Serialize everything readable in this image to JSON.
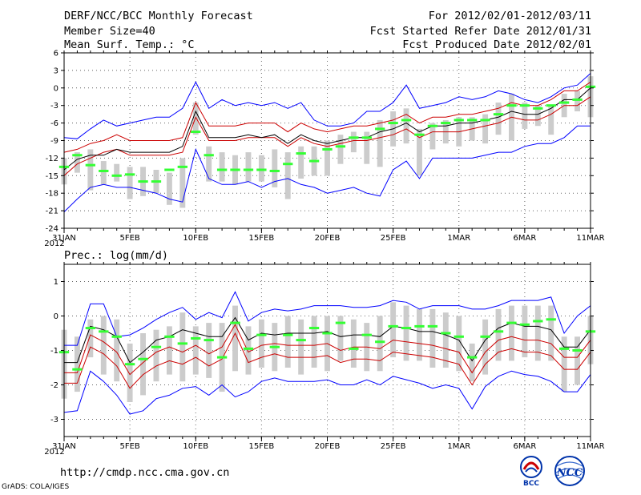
{
  "header": {
    "title": "DERF/NCC/BCC Monthly Forecast",
    "member_size": "Member Size=40",
    "variable": "Mean Surf. Temp.: °C",
    "period": "For 2012/02/01-2012/03/11",
    "started": "Fcst Started Refer Date 2012/01/31",
    "produced": "Fcst Produced Date 2012/02/01"
  },
  "footer": {
    "url": "http://cmdp.ncc.cma.gov.cn",
    "credit": "GrADS: COLA/IGES"
  },
  "logos": {
    "bcc": "BCC",
    "ncc": "NCC"
  },
  "colors": {
    "envelope": "#0000ff",
    "spread": "#cc0000",
    "mean": "#000000",
    "box": "#cccccc",
    "obs": "#33ff33"
  },
  "chart_data": [
    {
      "type": "line",
      "title": "Mean Surf. Temp.: °C",
      "x_range": [
        0,
        40
      ],
      "x_ticks": [
        {
          "x": 0,
          "label": "31JAN"
        },
        {
          "x": 5,
          "label": "5FEB"
        },
        {
          "x": 10,
          "label": "10FEB"
        },
        {
          "x": 15,
          "label": "15FEB"
        },
        {
          "x": 20,
          "label": "20FEB"
        },
        {
          "x": 25,
          "label": "25FEB"
        },
        {
          "x": 30,
          "label": "1MAR"
        },
        {
          "x": 35,
          "label": "6MAR"
        },
        {
          "x": 40,
          "label": "11MAR"
        }
      ],
      "year_label": "2012",
      "ylim": [
        -24,
        6
      ],
      "y_ticks": [
        6,
        3,
        0,
        -3,
        -6,
        -9,
        -12,
        -15,
        -18,
        -21,
        -24
      ],
      "grid": "dotted",
      "series": [
        {
          "name": "max",
          "values": [
            -21.2,
            -19,
            -17,
            -16.5,
            -17,
            -17,
            -17.5,
            -18,
            -19,
            -19.5,
            -10.5,
            -15.5,
            -16.5,
            -16.5,
            -16,
            -17,
            -16,
            -15.5,
            -16.5,
            -17,
            -18,
            -17.5,
            -17,
            -18,
            -18.5,
            -14,
            -12.5,
            -15.5,
            -12,
            -12,
            -12,
            -12,
            -11.5,
            -11,
            -11,
            -10,
            -9.5,
            -9.5,
            -8.5,
            -6.5,
            -6.5
          ]
        },
        {
          "name": "min",
          "values": [
            -8.5,
            -8.7,
            -7,
            -5.5,
            -6.5,
            -6,
            -5.5,
            -5,
            -5,
            -3.5,
            1,
            -3.5,
            -2,
            -3,
            -2.5,
            -3,
            -2.5,
            -3.5,
            -2.5,
            -5.5,
            -6.5,
            -6.5,
            -6,
            -4,
            -4,
            -2.5,
            0.5,
            -3.5,
            -3,
            -2.5,
            -1.5,
            -2,
            -1.5,
            -0.5,
            -1,
            -2,
            -2.5,
            -1.5,
            0,
            0.5,
            2.5
          ]
        },
        {
          "name": "upper",
          "values": [
            -15,
            -13,
            -12,
            -11,
            -10.5,
            -11.5,
            -11.5,
            -11.5,
            -11.5,
            -11,
            -5,
            -9,
            -9,
            -9,
            -8.5,
            -8.5,
            -8.5,
            -10,
            -8.5,
            -9.5,
            -10,
            -9.5,
            -9,
            -9,
            -8.5,
            -8,
            -7,
            -8.5,
            -7.5,
            -7.5,
            -7.5,
            -7,
            -6.5,
            -6,
            -5,
            -5.5,
            -5.5,
            -4.5,
            -3,
            -3,
            -1.5
          ]
        },
        {
          "name": "lower",
          "values": [
            -11,
            -10.5,
            -9.5,
            -9,
            -8,
            -9,
            -9,
            -9,
            -9,
            -8.5,
            -2.5,
            -6.5,
            -6.5,
            -6.5,
            -6,
            -6,
            -6,
            -7.5,
            -6,
            -7,
            -7.5,
            -7,
            -6.5,
            -6.5,
            -6,
            -5.5,
            -4.5,
            -6,
            -5,
            -5,
            -4.5,
            -4.5,
            -4,
            -3.5,
            -2.5,
            -3,
            -3,
            -2,
            -0.5,
            -0.5,
            1
          ]
        },
        {
          "name": "mean",
          "values": [
            -14,
            -12.2,
            -11.5,
            -11.5,
            -10.5,
            -11,
            -11,
            -11,
            -11,
            -10,
            -4,
            -8.5,
            -8.5,
            -8.5,
            -8,
            -8.5,
            -8,
            -9.5,
            -8,
            -9,
            -9.5,
            -9,
            -8.5,
            -8.5,
            -7.5,
            -7,
            -6,
            -7.5,
            -6.5,
            -6.5,
            -6,
            -6,
            -5.5,
            -5,
            -4,
            -4.5,
            -4.5,
            -3.5,
            -2,
            -2,
            0
          ]
        },
        {
          "name": "box_low",
          "values": [
            -16.5,
            -14.5,
            -17.5,
            -16.5,
            -16,
            -19,
            -18.5,
            -18,
            -20,
            -20.5,
            -8,
            -16,
            -16,
            -16.5,
            -16,
            -16,
            -17,
            -19,
            -15.5,
            -15,
            -15,
            -13,
            -11,
            -13,
            -13.5,
            -10,
            -9.5,
            -15,
            -10.5,
            -9.5,
            -10,
            -9,
            -9.5,
            -8,
            -9,
            -7,
            -6.5,
            -8,
            -5,
            -4,
            -5
          ]
        },
        {
          "name": "box_high",
          "values": [
            -12,
            -11,
            -10.5,
            -12.5,
            -13,
            -13.5,
            -13.5,
            -14,
            -14.5,
            -12,
            -2.5,
            -10,
            -11,
            -11.5,
            -11,
            -11.5,
            -10.5,
            -11,
            -10,
            -10,
            -9,
            -8,
            -7.5,
            -7.5,
            -5.5,
            -4,
            -3.5,
            -7,
            -6,
            -5.5,
            -5,
            -5,
            -4.5,
            -2.5,
            -1,
            -2.5,
            -3,
            -3,
            -1,
            -0.5,
            2
          ]
        },
        {
          "name": "observed",
          "values": [
            -13.5,
            -11.5,
            -13.2,
            -14.2,
            -15,
            -14.8,
            -16,
            -16,
            -14,
            -13.5,
            -7.5,
            -11.5,
            -14,
            -14,
            -14,
            -14,
            -14.2,
            -13,
            -11.2,
            -12.5,
            -10.5,
            -10,
            -8.5,
            -8.5,
            -7,
            -6,
            -5.5,
            -8,
            -6.5,
            -6,
            -5.5,
            -5.5,
            -5.5,
            -4.5,
            -3,
            -3,
            -3.5,
            -3,
            -2.5,
            -2,
            0.2
          ]
        }
      ]
    },
    {
      "type": "line",
      "title": "Prec.: log(mm/d)",
      "x_range": [
        0,
        40
      ],
      "x_ticks": [
        {
          "x": 0,
          "label": "31JAN"
        },
        {
          "x": 5,
          "label": "5FEB"
        },
        {
          "x": 10,
          "label": "10FEB"
        },
        {
          "x": 15,
          "label": "15FEB"
        },
        {
          "x": 20,
          "label": "20FEB"
        },
        {
          "x": 25,
          "label": "25FEB"
        },
        {
          "x": 30,
          "label": "1MAR"
        },
        {
          "x": 35,
          "label": "6MAR"
        },
        {
          "x": 40,
          "label": "11MAR"
        }
      ],
      "year_label": "2012",
      "ylim": [
        -3.5,
        1.5
      ],
      "y_ticks": [
        1,
        0,
        -1,
        -2,
        -3
      ],
      "grid": "dotted",
      "series": [
        {
          "name": "max",
          "values": [
            -2.8,
            -2.75,
            -1.6,
            -1.9,
            -2.3,
            -2.85,
            -2.75,
            -2.4,
            -2.3,
            -2.1,
            -2.05,
            -2.3,
            -2,
            -2.35,
            -2.2,
            -1.9,
            -1.8,
            -1.9,
            -1.9,
            -1.9,
            -1.85,
            -2,
            -2,
            -1.85,
            -2,
            -1.75,
            -1.85,
            -1.95,
            -2.1,
            -2,
            -2.1,
            -2.7,
            -2.05,
            -1.75,
            -1.6,
            -1.7,
            -1.75,
            -1.9,
            -2.2,
            -2.2,
            -1.7
          ]
        },
        {
          "name": "min",
          "values": [
            -0.85,
            -0.85,
            0.35,
            0.35,
            -0.6,
            -0.55,
            -0.35,
            -0.1,
            0.1,
            0.25,
            -0.1,
            0.1,
            -0.05,
            0.7,
            -0.15,
            0.1,
            0.2,
            0.15,
            0.2,
            0.3,
            0.3,
            0.3,
            0.25,
            0.25,
            0.3,
            0.45,
            0.4,
            0.2,
            0.3,
            0.3,
            0.3,
            0.2,
            0.2,
            0.3,
            0.45,
            0.45,
            0.45,
            0.55,
            -0.5,
            0,
            0.3
          ]
        },
        {
          "name": "upper",
          "values": [
            -1.95,
            -1.95,
            -0.9,
            -1.1,
            -1.45,
            -2.1,
            -1.7,
            -1.45,
            -1.3,
            -1.4,
            -1.2,
            -1.45,
            -1.25,
            -0.5,
            -1.35,
            -1.2,
            -1.1,
            -1.2,
            -1.2,
            -1.2,
            -1.15,
            -1.35,
            -1.25,
            -1.25,
            -1.3,
            -1.05,
            -1.1,
            -1.15,
            -1.2,
            -1.3,
            -1.4,
            -2,
            -1.4,
            -1.05,
            -0.95,
            -1.05,
            -1.05,
            -1.15,
            -1.55,
            -1.55,
            -1.05
          ]
        },
        {
          "name": "lower",
          "values": [
            -1.65,
            -1.65,
            -0.55,
            -0.75,
            -1.05,
            -1.7,
            -1.35,
            -1.05,
            -0.9,
            -1.05,
            -0.85,
            -1.1,
            -0.9,
            -0.25,
            -1.05,
            -0.85,
            -0.8,
            -0.85,
            -0.85,
            -0.85,
            -0.8,
            -1,
            -0.9,
            -0.9,
            -0.95,
            -0.7,
            -0.75,
            -0.8,
            -0.85,
            -0.95,
            -1.05,
            -1.65,
            -1.05,
            -0.7,
            -0.6,
            -0.7,
            -0.7,
            -0.8,
            -1.2,
            -1.2,
            -0.7
          ]
        },
        {
          "name": "mean",
          "values": [
            -1.35,
            -1.35,
            -0.3,
            -0.4,
            -0.6,
            -1.35,
            -1.05,
            -0.7,
            -0.6,
            -0.4,
            -0.5,
            -0.6,
            -0.6,
            -0.05,
            -0.7,
            -0.5,
            -0.55,
            -0.5,
            -0.5,
            -0.5,
            -0.45,
            -0.6,
            -0.55,
            -0.55,
            -0.6,
            -0.3,
            -0.35,
            -0.45,
            -0.45,
            -0.55,
            -0.7,
            -1.3,
            -0.7,
            -0.35,
            -0.2,
            -0.3,
            -0.3,
            -0.4,
            -0.9,
            -0.9,
            -0.4
          ]
        },
        {
          "name": "box_low",
          "values": [
            -2.4,
            -2.2,
            -1.2,
            -1.7,
            -1.9,
            -2.5,
            -2.3,
            -1.9,
            -1.7,
            -1.9,
            -1.7,
            -1.8,
            -2.2,
            -1.6,
            -1.7,
            -1.5,
            -1.6,
            -1.5,
            -1.7,
            -1.5,
            -1.6,
            -1.3,
            -1.5,
            -1.6,
            -1.6,
            -1.2,
            -1.3,
            -1.3,
            -1.5,
            -1.5,
            -1.6,
            -1.9,
            -1.7,
            -1.3,
            -1.3,
            -1.2,
            -1.3,
            -1.3,
            -2.2,
            -2,
            -1.4
          ]
        },
        {
          "name": "box_high",
          "values": [
            -0.4,
            -0.6,
            -0.1,
            0,
            -0.1,
            -0.8,
            -0.5,
            -0.4,
            -0.3,
            0.1,
            -0.3,
            -0.2,
            -0.2,
            0.3,
            -0.3,
            -0.1,
            -0.2,
            0,
            -0.1,
            0,
            0,
            0,
            -0.1,
            -0.2,
            0,
            0.4,
            0.3,
            0.2,
            0.2,
            0.1,
            0,
            -0.8,
            -0.1,
            0.2,
            0.3,
            0.3,
            0.3,
            0.3,
            -0.6,
            -0.6,
            0
          ]
        },
        {
          "name": "observed",
          "values": [
            -1.05,
            -1.55,
            -0.35,
            -0.45,
            -0.6,
            -1.4,
            -1.25,
            -0.9,
            -0.6,
            -0.8,
            -0.65,
            -0.7,
            -1.2,
            -0.2,
            -0.95,
            -0.55,
            -0.9,
            -0.55,
            -0.7,
            -0.35,
            -0.5,
            -0.2,
            -0.95,
            -0.55,
            -0.75,
            -0.3,
            -0.35,
            -0.3,
            -0.3,
            -0.5,
            -0.6,
            -1.2,
            -0.6,
            -0.45,
            -0.2,
            -0.25,
            -0.15,
            -0.1,
            -0.95,
            -1,
            -0.45
          ]
        }
      ]
    }
  ]
}
